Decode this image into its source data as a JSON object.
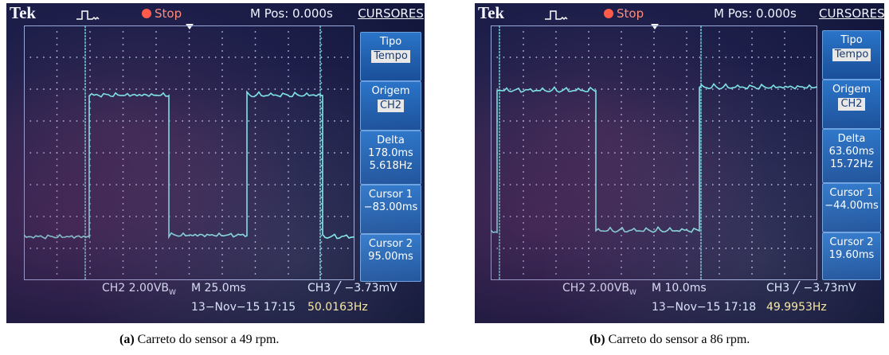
{
  "panels": [
    {
      "brand": "Tek",
      "status": "Stop",
      "mpos": "M Pos: 0.000s",
      "menu": {
        "title": "CURSORES",
        "tipo_label": "Tipo",
        "tipo_value": "Tempo",
        "origem_label": "Origem",
        "origem_value": "CH2",
        "delta_label": "Delta",
        "delta_time": "178.0ms",
        "delta_freq": "5.618Hz",
        "cursor1_label": "Cursor 1",
        "cursor1_value": "−83.00ms",
        "cursor2_label": "Cursor 2",
        "cursor2_value": "95.00ms"
      },
      "bottom": {
        "ch_scale": "CH2  2.00VB",
        "bw": "W",
        "timebase": "M 25.0ms",
        "trigger": "CH3 ╱ −3.73mV",
        "date": "13−Nov−15 17:15",
        "freq": "50.0163Hz"
      },
      "channel_marker": "2",
      "caption_label": "(a)",
      "caption_text": "Carreto do sensor a 49 rpm."
    },
    {
      "brand": "Tek",
      "status": "Stop",
      "mpos": "M Pos: 0.000s",
      "menu": {
        "title": "CURSORES",
        "tipo_label": "Tipo",
        "tipo_value": "Tempo",
        "origem_label": "Origem",
        "origem_value": "CH2",
        "delta_label": "Delta",
        "delta_time": "63.60ms",
        "delta_freq": "15.72Hz",
        "cursor1_label": "Cursor 1",
        "cursor1_value": "−44.00ms",
        "cursor2_label": "Cursor 2",
        "cursor2_value": "19.60ms"
      },
      "bottom": {
        "ch_scale": "CH2  2.00VB",
        "bw": "W",
        "timebase": "M 10.0ms",
        "trigger": "CH3 ╱ −3.73mV",
        "date": "13−Nov−15 17:18",
        "freq": "49.9953Hz"
      },
      "channel_marker": "2",
      "caption_label": "(b)",
      "caption_text": "Carreto do sensor a 86 rpm."
    }
  ],
  "colors": {
    "trace": "#7de6e6",
    "cursor": "#7de6e6",
    "grid_dot": "#b8c4e8",
    "menu_box": "#2a74c8",
    "stop": "#ff5a4a"
  },
  "icons": [
    "trigger-pulse-icon",
    "stop-indicator-icon",
    "trigger-position-arrow-icon",
    "slope-rising-icon"
  ]
}
